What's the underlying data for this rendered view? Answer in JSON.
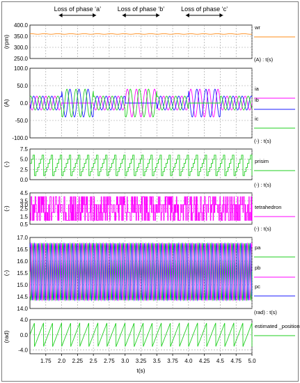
{
  "annotations": {
    "items": [
      {
        "label": "Loss of phase ‘a’",
        "from": 2.0,
        "to": 2.5
      },
      {
        "label": "Loss of phase ‘b’",
        "from": 3.0,
        "to": 3.5
      },
      {
        "label": "Loss of phase ‘c’",
        "from": 4.0,
        "to": 4.5
      }
    ]
  },
  "xaxis": {
    "label": "t(s)",
    "range": [
      1.5,
      5.0
    ],
    "ticks": [
      "1.75",
      "2.0",
      "2.25",
      "2.5",
      "2.75",
      "3.0",
      "3.25",
      "3.5",
      "3.75",
      "4.0",
      "4.25",
      "4.5",
      "4.75",
      "5.0"
    ]
  },
  "colors": {
    "orange": "#ff8c1a",
    "magenta": "#ff00ff",
    "blue": "#1a1aff",
    "green": "#1fcf1f",
    "grid": "#9a9a9a",
    "axis": "#000000"
  },
  "chart_data": [
    {
      "type": "line",
      "unit_label": "(rpm)",
      "header": "",
      "ylim": [
        250.0,
        400.0
      ],
      "yticks": [
        "400.0",
        "350.0",
        "300.0",
        "250.0"
      ],
      "series": [
        {
          "name": "wr",
          "color": "orange",
          "kind": "const",
          "value": 360
        }
      ]
    },
    {
      "type": "line",
      "unit_label": "(A)",
      "header": "(A) : t(s)",
      "ylim": [
        -100.0,
        100.0
      ],
      "yticks": [
        "100.0",
        "50.0",
        "0.0",
        "-50.0",
        "-100.0"
      ],
      "series": [
        {
          "name": "ia",
          "color": "magenta",
          "kind": "phase_current",
          "phase": 0,
          "lost": [
            2.0,
            2.5
          ]
        },
        {
          "name": "ib",
          "color": "blue",
          "kind": "phase_current",
          "phase": 1,
          "lost": [
            3.0,
            3.5
          ]
        },
        {
          "name": "ic",
          "color": "green",
          "kind": "phase_current",
          "phase": 2,
          "lost": [
            4.0,
            4.5
          ]
        }
      ]
    },
    {
      "type": "line",
      "unit_label": "(-)",
      "header": "(-) : t(s)",
      "ylim": [
        0.0,
        7.5
      ],
      "yticks": [
        "7.5",
        "5.0",
        "2.5",
        "0.0"
      ],
      "series": [
        {
          "name": "prisim",
          "color": "green",
          "kind": "staircase",
          "min": 1,
          "max": 6
        }
      ]
    },
    {
      "type": "line",
      "unit_label": "(-)",
      "header": "(-) : t(s)",
      "ylim": [
        0.5,
        4.5
      ],
      "yticks": [
        "4.5",
        "3.5",
        "3.0",
        "2.5",
        "1.5",
        "0.5"
      ],
      "series": [
        {
          "name": "tetrahedron",
          "color": "magenta",
          "kind": "switching",
          "levels": [
            1,
            2,
            3,
            4
          ]
        }
      ]
    },
    {
      "type": "line",
      "unit_label": "(-)",
      "header": "(-) : t(s)",
      "ylim": [
        14.0,
        17.0
      ],
      "yticks": [
        "17.0",
        "16.5",
        "16.0",
        "15.5",
        "15.0",
        "14.5",
        "14.0"
      ],
      "series": [
        {
          "name": "pa",
          "color": "green",
          "kind": "carrier",
          "phase": 0,
          "center": 15.55,
          "amp": 1.2
        },
        {
          "name": "pb",
          "color": "magenta",
          "kind": "carrier",
          "phase": 1,
          "center": 15.55,
          "amp": 1.2
        },
        {
          "name": "pc",
          "color": "blue",
          "kind": "carrier",
          "phase": 2,
          "center": 15.55,
          "amp": 1.2
        }
      ]
    },
    {
      "type": "line",
      "unit_label": "(rad)",
      "header": "(rad) : t(s)",
      "ylim": [
        -5.0,
        4.0
      ],
      "yticks": [
        "4.0",
        "0.0",
        "-4.0"
      ],
      "series": [
        {
          "name": "estimated _position*",
          "color": "green",
          "kind": "sawtooth",
          "low": -3.14,
          "high": 3.14
        }
      ]
    }
  ]
}
